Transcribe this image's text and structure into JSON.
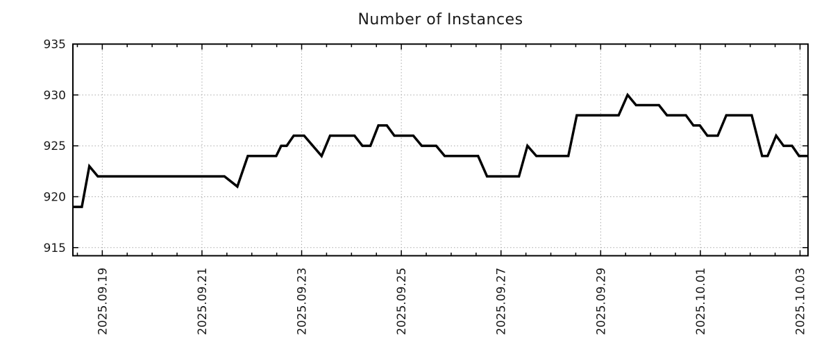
{
  "chart_data": {
    "type": "line",
    "title": "Number of Instances",
    "xlabel": "",
    "ylabel": "",
    "x_unit": "days since 2025-09-18 00:00",
    "xlim": [
      0.41,
      15.16
    ],
    "ylim": [
      914.2,
      935
    ],
    "y_ticks": [
      915,
      920,
      925,
      930,
      935
    ],
    "x_major_ticks": [
      {
        "t": 1,
        "label": "2025.09.19"
      },
      {
        "t": 3,
        "label": "2025.09.21"
      },
      {
        "t": 5,
        "label": "2025.09.23"
      },
      {
        "t": 7,
        "label": "2025.09.25"
      },
      {
        "t": 9,
        "label": "2025.09.27"
      },
      {
        "t": 11,
        "label": "2025.09.29"
      },
      {
        "t": 13,
        "label": "2025.10.01"
      },
      {
        "t": 15,
        "label": "2025.10.03"
      }
    ],
    "x_minor_step": 0.5,
    "grid": true,
    "legend": "none",
    "colors": {
      "line": "#000000",
      "grid": "#a8a8a8",
      "frame": "#000000",
      "text": "#1a1a1a",
      "background": "#ffffff"
    },
    "series": [
      {
        "name": "instances",
        "points": [
          [
            0.41,
            919
          ],
          [
            0.59,
            919
          ],
          [
            0.74,
            923
          ],
          [
            0.91,
            922
          ],
          [
            3.45,
            922
          ],
          [
            3.71,
            921
          ],
          [
            3.92,
            924
          ],
          [
            4.49,
            924
          ],
          [
            4.59,
            925
          ],
          [
            4.7,
            925
          ],
          [
            4.84,
            926
          ],
          [
            5.05,
            926
          ],
          [
            5.4,
            924
          ],
          [
            5.57,
            926
          ],
          [
            6.06,
            926
          ],
          [
            6.22,
            925
          ],
          [
            6.38,
            925
          ],
          [
            6.54,
            927
          ],
          [
            6.71,
            927
          ],
          [
            6.86,
            926
          ],
          [
            7.24,
            926
          ],
          [
            7.41,
            925
          ],
          [
            7.7,
            925
          ],
          [
            7.87,
            924
          ],
          [
            8.54,
            924
          ],
          [
            8.72,
            922
          ],
          [
            9.36,
            922
          ],
          [
            9.53,
            925
          ],
          [
            9.71,
            924
          ],
          [
            10.35,
            924
          ],
          [
            10.52,
            928
          ],
          [
            11.36,
            928
          ],
          [
            11.54,
            930
          ],
          [
            11.71,
            929
          ],
          [
            12.17,
            929
          ],
          [
            12.33,
            928
          ],
          [
            12.71,
            928
          ],
          [
            12.86,
            927
          ],
          [
            12.99,
            927
          ],
          [
            13.14,
            926
          ],
          [
            13.35,
            926
          ],
          [
            13.52,
            928
          ],
          [
            14.03,
            928
          ],
          [
            14.24,
            924
          ],
          [
            14.35,
            924
          ],
          [
            14.52,
            926
          ],
          [
            14.67,
            925
          ],
          [
            14.84,
            925
          ],
          [
            14.98,
            924
          ],
          [
            15.16,
            924
          ]
        ]
      }
    ]
  }
}
